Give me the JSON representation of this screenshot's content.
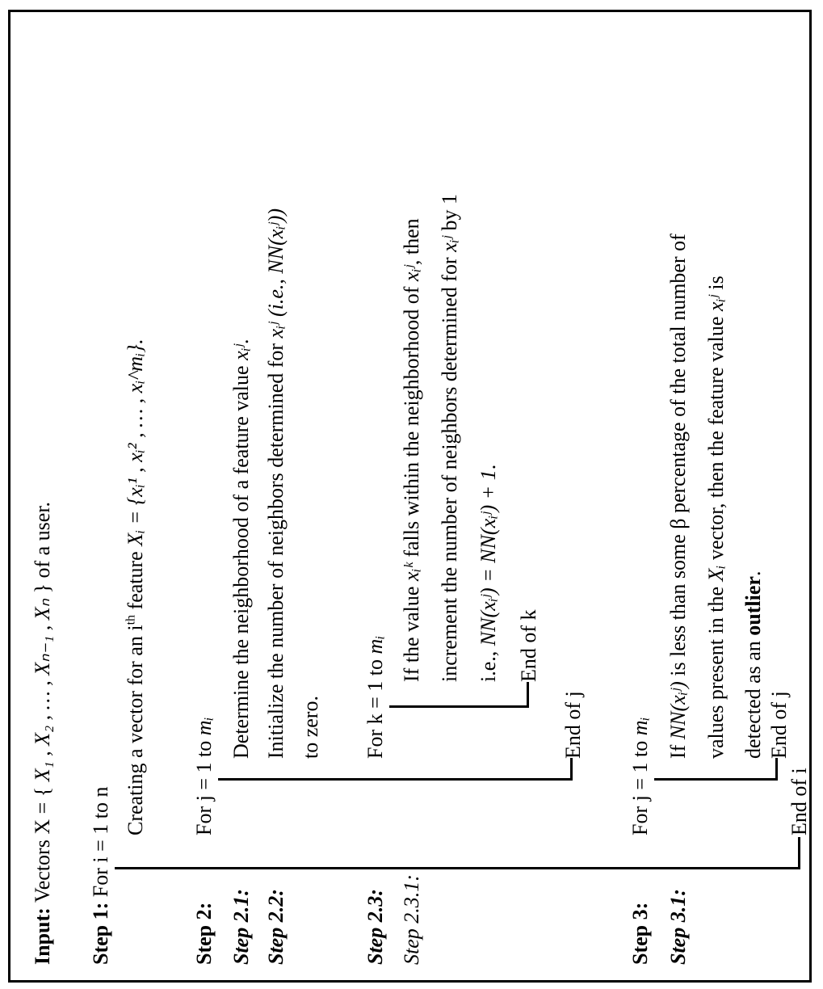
{
  "input": {
    "label": "Input:",
    "text_before": "Vectors X = {",
    "vectors_math": "X₁ , X₂ , … , Xₙ₋₁ , Xₙ",
    "text_after": "} of a user."
  },
  "step1": {
    "label": "Step 1:",
    "text": "For i = 1 to n",
    "end_label": "End of i"
  },
  "create_vector": {
    "text_before": "Creating a vector for an i",
    "superscript": "th",
    "text_mid": " feature ",
    "math": "Xᵢ = {xᵢ¹ , xᵢ² , … , xᵢ^mᵢ}",
    "text_after": "."
  },
  "step2": {
    "label": "Step 2:",
    "text": "For j = 1 to ",
    "math": "mᵢ",
    "end_label": "End of j"
  },
  "step2_1": {
    "label": "Step 2.1:",
    "text": "Determine the neighborhood of a feature value ",
    "math": "xᵢʲ",
    "text_after": "."
  },
  "step2_2": {
    "label": "Step 2.2:",
    "line1": "Initialize the number of neighbors determined for ",
    "line1_math": "xᵢʲ (i.e., NN(xᵢʲ))",
    "line2": "to zero."
  },
  "step2_3": {
    "label": "Step 2.3:",
    "text": "For k = 1 to ",
    "math": "mᵢ",
    "end_label": "End of k"
  },
  "step2_3_1": {
    "label": "Step 2.3.1:",
    "line1_a": "If the value ",
    "line1_math_a": "xᵢᵏ",
    "line1_b": " falls within the neighborhood of ",
    "line1_math_b": "xᵢʲ",
    "line1_c": ", then",
    "line2_a": "increment the number of neighbors determined for ",
    "line2_math": "xᵢʲ",
    "line2_b": " by 1",
    "line3_a": "i.e., ",
    "line3_math": "NN(xᵢʲ) = NN(xᵢʲ) + 1",
    "line3_b": "."
  },
  "step3": {
    "label": "Step 3:",
    "text": "For j = 1 to ",
    "math": "mᵢ",
    "end_label": "End of j"
  },
  "step3_1": {
    "label": "Step 3.1:",
    "line1_a": "If ",
    "line1_math": "NN(xᵢʲ)",
    "line1_b": " is less than some β percentage of the total number of",
    "line2_a": "values present in the ",
    "line2_math": "Xᵢ",
    "line2_b": " vector, then the feature value ",
    "line2_math_b": "xᵢʲ",
    "line2_c": " is",
    "line3_a": "detected as an ",
    "line3_bold": "outlier",
    "line3_b": "."
  }
}
